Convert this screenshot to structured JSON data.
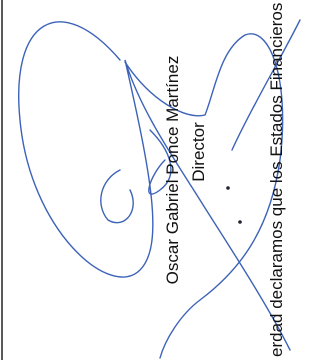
{
  "signatory": {
    "name": "Oscar Gabriel Ponce Martínez",
    "title": "Director"
  },
  "statement": "erdad declaramos que los Estados Financieros"
}
